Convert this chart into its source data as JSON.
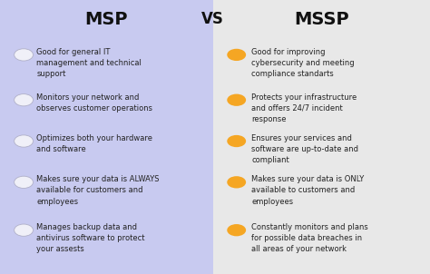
{
  "title_msp": "MSP",
  "title_vs": "VS",
  "title_mssp": "MSSP",
  "msp_bg": "#c8caf0",
  "mssp_bg": "#e8e8e8",
  "msp_bullet_color": "#f0f0f8",
  "mssp_bullet_color": "#f5a623",
  "title_color": "#111111",
  "text_color": "#222222",
  "msp_split": 0.495,
  "msp_items": [
    "Good for general IT\nmanagement and technical\nsupport",
    "Monitors your network and\nobserves customer operations",
    "Optimizes both your hardware\nand software",
    "Makes sure your data is ALWAYS\navailable for customers and\nemployees",
    "Manages backup data and\nantivirus software to protect\nyour assests"
  ],
  "mssp_items": [
    "Good for improving\ncybersecurity and meeting\ncompliance standarts",
    "Protects your infrastructure\nand offers 24/7 incident\nresponse",
    "Ensures your services and\nsoftware are up-to-date and\ncompliant",
    "Makes sure your data is ONLY\navailable to customers and\nemployees",
    "Constantly monitors and plans\nfor possible data breaches in\nall areas of your network"
  ],
  "figw": 4.74,
  "figh": 3.02,
  "dpi": 100
}
